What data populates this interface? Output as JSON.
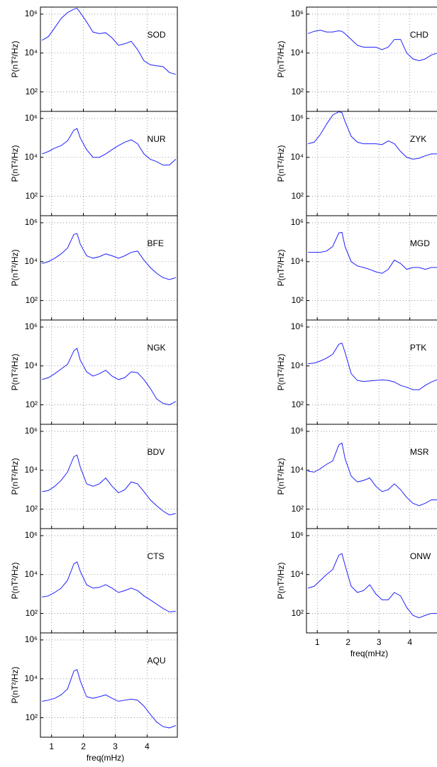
{
  "chart_data": [
    {
      "type": "line",
      "label": "SOD",
      "ylabel": "P(nT²/Hz)",
      "yscale": "log",
      "grid": true,
      "xlim": [
        0.65,
        4.95
      ],
      "ylim": [
        10,
        2300000
      ],
      "xticks": [
        1,
        2,
        3,
        4
      ],
      "yticks": [
        {
          "value": 100,
          "label": "10²"
        },
        {
          "value": 10000,
          "label": "10⁴"
        },
        {
          "value": 1000000,
          "label": "10⁶"
        }
      ],
      "x": [
        0.7,
        0.9,
        1.1,
        1.3,
        1.5,
        1.7,
        1.8,
        1.9,
        2.1,
        2.3,
        2.5,
        2.7,
        2.9,
        3.1,
        3.3,
        3.5,
        3.7,
        3.9,
        4.1,
        4.3,
        4.5,
        4.7,
        4.9
      ],
      "series": [
        {
          "color": "#2020ff",
          "values": [
            45000,
            70000,
            200000,
            600000,
            1200000,
            1800000,
            2000000,
            1200000,
            400000,
            120000,
            100000,
            110000,
            60000,
            25000,
            30000,
            40000,
            15000,
            4000,
            2500,
            2200,
            2000,
            1000,
            800
          ]
        }
      ]
    },
    {
      "type": "line",
      "label": "NUR",
      "ylabel": "P(nT²/Hz)",
      "yscale": "log",
      "grid": true,
      "xlim": [
        0.65,
        4.95
      ],
      "ylim": [
        10,
        2300000
      ],
      "xticks": [
        1,
        2,
        3,
        4
      ],
      "yticks": [
        {
          "value": 100,
          "label": "10²"
        },
        {
          "value": 10000,
          "label": "10⁴"
        },
        {
          "value": 1000000,
          "label": "10⁶"
        }
      ],
      "x": [
        0.7,
        0.9,
        1.1,
        1.3,
        1.5,
        1.7,
        1.8,
        1.9,
        2.1,
        2.3,
        2.5,
        2.7,
        2.9,
        3.1,
        3.3,
        3.5,
        3.7,
        3.9,
        4.1,
        4.3,
        4.5,
        4.7,
        4.9
      ],
      "series": [
        {
          "color": "#2020ff",
          "values": [
            15000,
            20000,
            30000,
            40000,
            70000,
            250000,
            300000,
            100000,
            25000,
            10000,
            10000,
            15000,
            25000,
            40000,
            60000,
            80000,
            50000,
            15000,
            8000,
            6000,
            4000,
            4000,
            8000
          ]
        }
      ]
    },
    {
      "type": "line",
      "label": "BFE",
      "ylabel": "P(nT²/Hz)",
      "yscale": "log",
      "grid": true,
      "xlim": [
        0.65,
        4.95
      ],
      "ylim": [
        10,
        2300000
      ],
      "xticks": [
        1,
        2,
        3,
        4
      ],
      "yticks": [
        {
          "value": 100,
          "label": "10²"
        },
        {
          "value": 10000,
          "label": "10⁴"
        },
        {
          "value": 1000000,
          "label": "10⁶"
        }
      ],
      "x": [
        0.7,
        0.9,
        1.1,
        1.3,
        1.5,
        1.7,
        1.8,
        1.9,
        2.1,
        2.3,
        2.5,
        2.7,
        2.9,
        3.1,
        3.3,
        3.5,
        3.7,
        3.9,
        4.1,
        4.3,
        4.5,
        4.7,
        4.9
      ],
      "series": [
        {
          "color": "#2020ff",
          "values": [
            8000,
            10000,
            15000,
            25000,
            50000,
            250000,
            280000,
            80000,
            20000,
            15000,
            18000,
            25000,
            20000,
            15000,
            20000,
            30000,
            35000,
            12000,
            5000,
            2500,
            1500,
            1200,
            1500
          ]
        }
      ]
    },
    {
      "type": "line",
      "label": "NGK",
      "ylabel": "P(nT²/Hz)",
      "yscale": "log",
      "grid": true,
      "xlim": [
        0.65,
        4.95
      ],
      "ylim": [
        10,
        2300000
      ],
      "xticks": [
        1,
        2,
        3,
        4
      ],
      "yticks": [
        {
          "value": 100,
          "label": "10²"
        },
        {
          "value": 10000,
          "label": "10⁴"
        },
        {
          "value": 1000000,
          "label": "10⁶"
        }
      ],
      "x": [
        0.7,
        0.9,
        1.1,
        1.3,
        1.5,
        1.7,
        1.8,
        1.9,
        2.1,
        2.3,
        2.5,
        2.7,
        2.9,
        3.1,
        3.3,
        3.5,
        3.7,
        3.9,
        4.1,
        4.3,
        4.5,
        4.7,
        4.9
      ],
      "series": [
        {
          "color": "#2020ff",
          "values": [
            2000,
            2500,
            4000,
            7000,
            12000,
            60000,
            80000,
            20000,
            5000,
            3000,
            4000,
            6000,
            3000,
            2000,
            2500,
            5000,
            4500,
            2000,
            700,
            200,
            120,
            100,
            150
          ]
        }
      ]
    },
    {
      "type": "line",
      "label": "BDV",
      "ylabel": "P(nT²/Hz)",
      "yscale": "log",
      "grid": true,
      "xlim": [
        0.65,
        4.95
      ],
      "ylim": [
        10,
        2300000
      ],
      "xticks": [
        1,
        2,
        3,
        4
      ],
      "yticks": [
        {
          "value": 100,
          "label": "10²"
        },
        {
          "value": 10000,
          "label": "10⁴"
        },
        {
          "value": 1000000,
          "label": "10⁶"
        }
      ],
      "x": [
        0.7,
        0.9,
        1.1,
        1.3,
        1.5,
        1.7,
        1.8,
        1.9,
        2.1,
        2.3,
        2.5,
        2.7,
        2.9,
        3.1,
        3.3,
        3.5,
        3.7,
        3.9,
        4.1,
        4.3,
        4.5,
        4.7,
        4.9
      ],
      "series": [
        {
          "color": "#2020ff",
          "values": [
            800,
            900,
            1500,
            3000,
            8000,
            50000,
            60000,
            15000,
            2000,
            1500,
            2000,
            4000,
            1500,
            700,
            1000,
            2500,
            2000,
            800,
            300,
            150,
            80,
            50,
            60
          ]
        }
      ]
    },
    {
      "type": "line",
      "label": "CTS",
      "ylabel": "P(nT²/Hz)",
      "yscale": "log",
      "grid": true,
      "xlim": [
        0.65,
        4.95
      ],
      "ylim": [
        10,
        2300000
      ],
      "xticks": [
        1,
        2,
        3,
        4
      ],
      "yticks": [
        {
          "value": 100,
          "label": "10²"
        },
        {
          "value": 10000,
          "label": "10⁴"
        },
        {
          "value": 1000000,
          "label": "10⁶"
        }
      ],
      "x": [
        0.7,
        0.9,
        1.1,
        1.3,
        1.5,
        1.7,
        1.8,
        1.9,
        2.1,
        2.3,
        2.5,
        2.7,
        2.9,
        3.1,
        3.3,
        3.5,
        3.7,
        3.9,
        4.1,
        4.3,
        4.5,
        4.7,
        4.9
      ],
      "series": [
        {
          "color": "#2020ff",
          "values": [
            700,
            800,
            1200,
            2000,
            5000,
            35000,
            45000,
            15000,
            3000,
            2000,
            2200,
            3000,
            2000,
            1200,
            1500,
            2000,
            1500,
            800,
            500,
            300,
            180,
            120,
            130
          ]
        }
      ]
    },
    {
      "type": "line",
      "label": "AQU",
      "ylabel": "P(nT²/Hz)",
      "xlabel": "freq(mHz)",
      "yscale": "log",
      "grid": true,
      "xlim": [
        0.65,
        4.95
      ],
      "ylim": [
        10,
        2300000
      ],
      "xticks": [
        1,
        2,
        3,
        4
      ],
      "yticks": [
        {
          "value": 100,
          "label": "10²"
        },
        {
          "value": 10000,
          "label": "10⁴"
        },
        {
          "value": 1000000,
          "label": "10⁶"
        }
      ],
      "x": [
        0.7,
        0.9,
        1.1,
        1.3,
        1.5,
        1.7,
        1.8,
        1.9,
        2.1,
        2.3,
        2.5,
        2.7,
        2.9,
        3.1,
        3.3,
        3.5,
        3.7,
        3.9,
        4.1,
        4.3,
        4.5,
        4.7,
        4.9
      ],
      "series": [
        {
          "color": "#2020ff",
          "values": [
            700,
            800,
            1000,
            1500,
            3000,
            25000,
            30000,
            8000,
            1200,
            1000,
            1200,
            1500,
            1000,
            700,
            800,
            900,
            800,
            400,
            150,
            60,
            35,
            30,
            40
          ]
        }
      ]
    },
    {
      "type": "line",
      "label": "CHD",
      "ylabel": "P(nT²/Hz)",
      "yscale": "log",
      "grid": true,
      "xlim": [
        0.65,
        4.95
      ],
      "ylim": [
        10,
        2300000
      ],
      "xticks": [
        1,
        2,
        3,
        4
      ],
      "yticks": [
        {
          "value": 100,
          "label": "10²"
        },
        {
          "value": 10000,
          "label": "10⁴"
        },
        {
          "value": 1000000,
          "label": "10⁶"
        }
      ],
      "x": [
        0.7,
        0.9,
        1.1,
        1.3,
        1.5,
        1.7,
        1.8,
        1.9,
        2.1,
        2.3,
        2.5,
        2.7,
        2.9,
        3.1,
        3.3,
        3.5,
        3.7,
        3.9,
        4.1,
        4.3,
        4.5,
        4.7,
        4.9
      ],
      "series": [
        {
          "color": "#2020ff",
          "values": [
            100000,
            130000,
            150000,
            120000,
            120000,
            140000,
            130000,
            100000,
            50000,
            25000,
            20000,
            20000,
            20000,
            15000,
            20000,
            50000,
            50000,
            10000,
            5000,
            4000,
            5000,
            8000,
            10000
          ]
        }
      ]
    },
    {
      "type": "line",
      "label": "ZYK",
      "ylabel": "P(nT²/Hz)",
      "yscale": "log",
      "grid": true,
      "xlim": [
        0.65,
        4.95
      ],
      "ylim": [
        10,
        2300000
      ],
      "xticks": [
        1,
        2,
        3,
        4
      ],
      "yticks": [
        {
          "value": 100,
          "label": "10²"
        },
        {
          "value": 10000,
          "label": "10⁴"
        },
        {
          "value": 1000000,
          "label": "10⁶"
        }
      ],
      "x": [
        0.7,
        0.9,
        1.1,
        1.3,
        1.5,
        1.7,
        1.8,
        1.9,
        2.1,
        2.3,
        2.5,
        2.7,
        2.9,
        3.1,
        3.3,
        3.5,
        3.7,
        3.9,
        4.1,
        4.3,
        4.5,
        4.7,
        4.9
      ],
      "series": [
        {
          "color": "#2020ff",
          "values": [
            50000,
            60000,
            150000,
            500000,
            1500000,
            2200000,
            2000000,
            700000,
            120000,
            60000,
            50000,
            50000,
            50000,
            45000,
            70000,
            50000,
            20000,
            10000,
            8000,
            9000,
            12000,
            15000,
            15000
          ]
        }
      ]
    },
    {
      "type": "line",
      "label": "MGD",
      "ylabel": "P(nT²/Hz)",
      "yscale": "log",
      "grid": true,
      "xlim": [
        0.65,
        4.95
      ],
      "ylim": [
        10,
        2300000
      ],
      "xticks": [
        1,
        2,
        3,
        4
      ],
      "yticks": [
        {
          "value": 100,
          "label": "10²"
        },
        {
          "value": 10000,
          "label": "10⁴"
        },
        {
          "value": 1000000,
          "label": "10⁶"
        }
      ],
      "x": [
        0.7,
        0.9,
        1.1,
        1.3,
        1.5,
        1.7,
        1.8,
        1.9,
        2.1,
        2.3,
        2.5,
        2.7,
        2.9,
        3.1,
        3.3,
        3.5,
        3.7,
        3.9,
        4.1,
        4.3,
        4.5,
        4.7,
        4.9
      ],
      "series": [
        {
          "color": "#2020ff",
          "values": [
            30000,
            30000,
            30000,
            35000,
            60000,
            300000,
            320000,
            60000,
            10000,
            6000,
            5000,
            4000,
            3000,
            2500,
            4000,
            12000,
            8000,
            4000,
            5000,
            5000,
            4000,
            5000,
            5000
          ]
        }
      ]
    },
    {
      "type": "line",
      "label": "PTK",
      "ylabel": "P(nT²/Hz)",
      "yscale": "log",
      "grid": true,
      "xlim": [
        0.65,
        4.95
      ],
      "ylim": [
        10,
        2300000
      ],
      "xticks": [
        1,
        2,
        3,
        4
      ],
      "yticks": [
        {
          "value": 100,
          "label": "10²"
        },
        {
          "value": 10000,
          "label": "10⁴"
        },
        {
          "value": 1000000,
          "label": "10⁶"
        }
      ],
      "x": [
        0.7,
        0.9,
        1.1,
        1.3,
        1.5,
        1.7,
        1.8,
        1.9,
        2.1,
        2.3,
        2.5,
        2.7,
        2.9,
        3.1,
        3.3,
        3.5,
        3.7,
        3.9,
        4.1,
        4.3,
        4.5,
        4.7,
        4.9
      ],
      "series": [
        {
          "color": "#2020ff",
          "values": [
            13000,
            14000,
            18000,
            25000,
            40000,
            130000,
            150000,
            50000,
            4000,
            1800,
            1600,
            1700,
            1800,
            1900,
            1800,
            1500,
            1000,
            800,
            600,
            600,
            1000,
            1500,
            2000
          ]
        }
      ]
    },
    {
      "type": "line",
      "label": "MSR",
      "ylabel": "P(nT²/Hz)",
      "yscale": "log",
      "grid": true,
      "xlim": [
        0.65,
        4.95
      ],
      "ylim": [
        10,
        2300000
      ],
      "xticks": [
        1,
        2,
        3,
        4
      ],
      "yticks": [
        {
          "value": 100,
          "label": "10²"
        },
        {
          "value": 10000,
          "label": "10⁴"
        },
        {
          "value": 1000000,
          "label": "10⁶"
        }
      ],
      "x": [
        0.7,
        0.9,
        1.1,
        1.3,
        1.5,
        1.7,
        1.8,
        1.9,
        2.1,
        2.3,
        2.5,
        2.7,
        2.9,
        3.1,
        3.3,
        3.5,
        3.7,
        3.9,
        4.1,
        4.3,
        4.5,
        4.7,
        4.9
      ],
      "series": [
        {
          "color": "#2020ff",
          "values": [
            9000,
            8000,
            12000,
            20000,
            30000,
            200000,
            250000,
            40000,
            5000,
            2500,
            3000,
            4000,
            1500,
            800,
            1000,
            2000,
            1000,
            400,
            200,
            150,
            200,
            300,
            300
          ]
        }
      ]
    },
    {
      "type": "line",
      "label": "ONW",
      "ylabel": "P(nT²/Hz)",
      "xlabel": "freq(mHz)",
      "yscale": "log",
      "grid": true,
      "xlim": [
        0.65,
        4.95
      ],
      "ylim": [
        10,
        2300000
      ],
      "xticks": [
        1,
        2,
        3,
        4
      ],
      "yticks": [
        {
          "value": 100,
          "label": "10²"
        },
        {
          "value": 10000,
          "label": "10⁴"
        },
        {
          "value": 1000000,
          "label": "10⁶"
        }
      ],
      "x": [
        0.7,
        0.9,
        1.1,
        1.3,
        1.5,
        1.7,
        1.8,
        1.9,
        2.1,
        2.3,
        2.5,
        2.7,
        2.9,
        3.1,
        3.3,
        3.5,
        3.7,
        3.9,
        4.1,
        4.3,
        4.5,
        4.7,
        4.9
      ],
      "series": [
        {
          "color": "#2020ff",
          "values": [
            2000,
            2500,
            5000,
            10000,
            18000,
            100000,
            120000,
            30000,
            2500,
            1200,
            1500,
            3000,
            1000,
            500,
            500,
            1200,
            800,
            200,
            80,
            60,
            80,
            100,
            100
          ]
        }
      ]
    }
  ]
}
